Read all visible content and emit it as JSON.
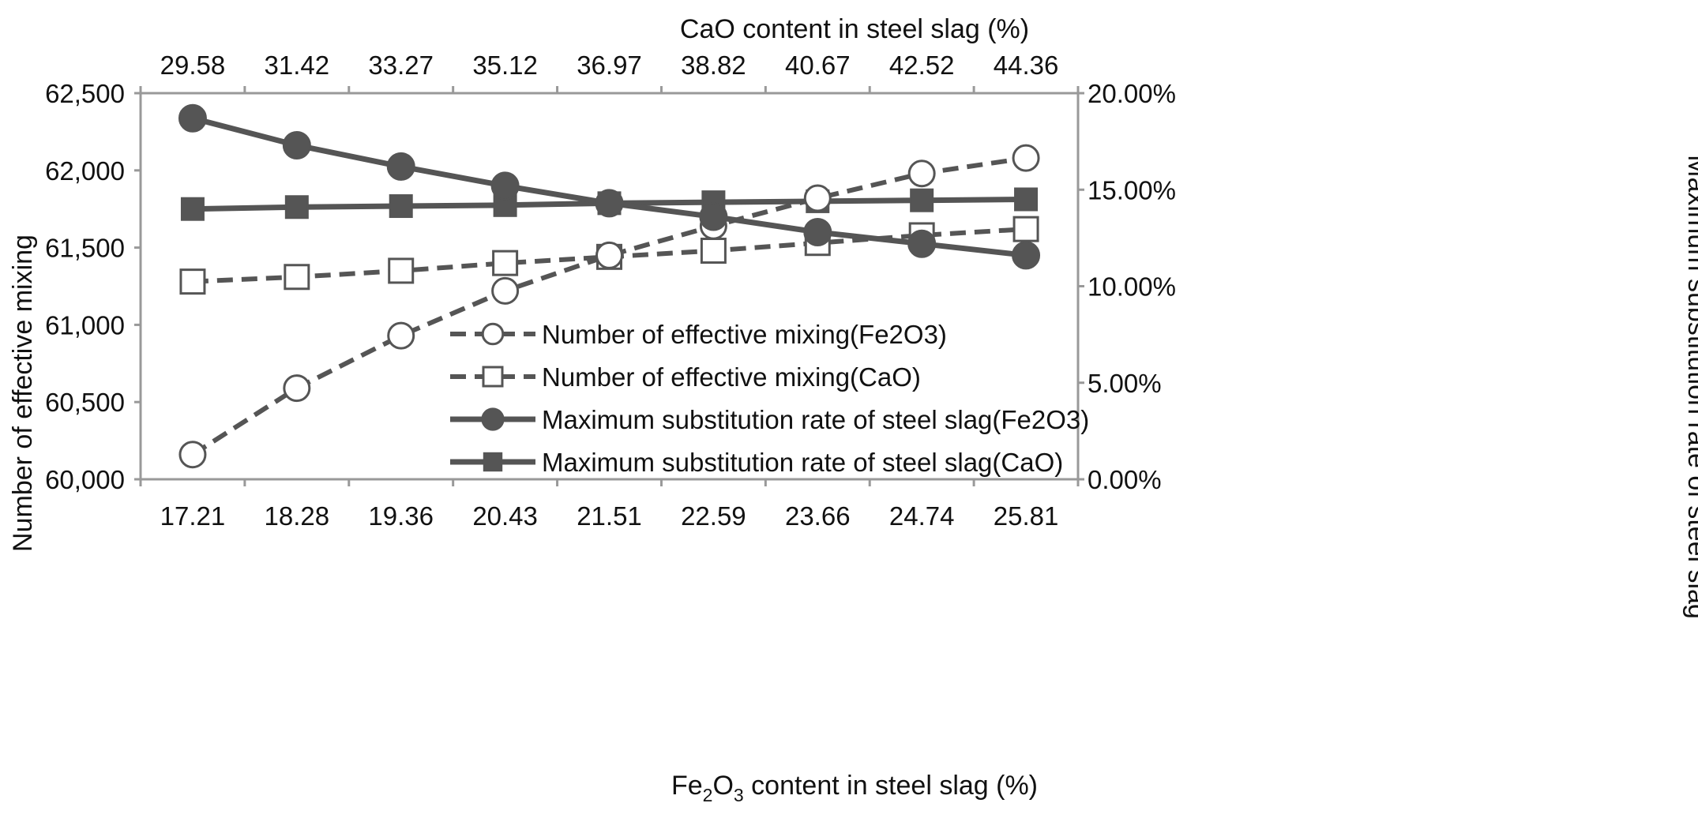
{
  "chart_data": {
    "type": "line",
    "categories": [
      "17.21",
      "18.28",
      "19.36",
      "20.43",
      "21.51",
      "22.59",
      "23.66",
      "24.74",
      "25.81"
    ],
    "top_categories": [
      "29.58",
      "31.42",
      "33.27",
      "35.12",
      "36.97",
      "38.82",
      "40.67",
      "42.52",
      "44.36"
    ],
    "xlabel_prefix": "Fe",
    "xlabel_sub1": "2",
    "xlabel_mid": "O",
    "xlabel_sub2": "3",
    "xlabel_suffix": " content in steel slag (%)",
    "x2label": "CaO content in steel slag (%)",
    "ylabel": "Number of effective mixing",
    "y2label": "Maximum substitution rate of steel slag",
    "ylim": [
      60000,
      62500
    ],
    "y2lim": [
      0,
      20
    ],
    "yticks": [
      "60,000",
      "60,500",
      "61,000",
      "61,500",
      "62,000",
      "62,500"
    ],
    "y2ticks": [
      "0.00%",
      "5.00%",
      "10.00%",
      "15.00%",
      "20.00%"
    ],
    "legend_position": "lower-right",
    "series": [
      {
        "name": "Number of effective mixing(Fe2O3)",
        "axis": "left",
        "style": "dashed",
        "marker": "open-circle",
        "values": [
          60160,
          60590,
          60930,
          61220,
          61450,
          61640,
          61820,
          61980,
          62080
        ]
      },
      {
        "name": "Number of effective mixing(CaO)",
        "axis": "left",
        "style": "dashed",
        "marker": "open-square",
        "values": [
          61280,
          61310,
          61350,
          61400,
          61440,
          61480,
          61530,
          61580,
          61620
        ]
      },
      {
        "name": "Maximum substitution rate of steel slag(Fe2O3)",
        "axis": "right",
        "style": "solid",
        "marker": "filled-circle",
        "values": [
          18.7,
          17.3,
          16.2,
          15.2,
          14.3,
          13.6,
          12.8,
          12.2,
          11.6
        ]
      },
      {
        "name": "Maximum substitution rate of steel slag(CaO)",
        "axis": "right",
        "style": "solid",
        "marker": "filled-square",
        "values": [
          14.0,
          14.1,
          14.15,
          14.2,
          14.3,
          14.35,
          14.4,
          14.45,
          14.5
        ]
      }
    ],
    "colors": {
      "line": "#555555",
      "axis": "#999999",
      "text": "#111111"
    }
  }
}
